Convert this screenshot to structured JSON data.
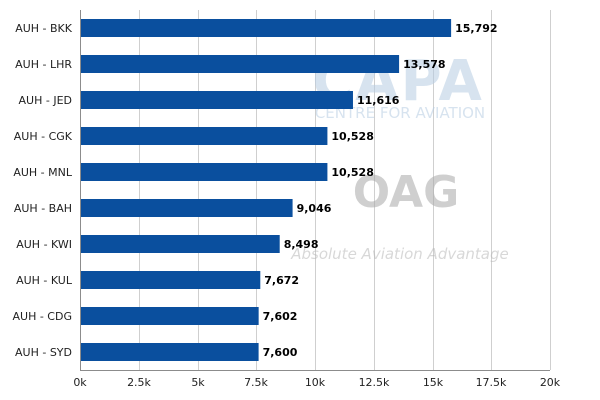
{
  "chart_data": {
    "type": "bar",
    "orientation": "horizontal",
    "categories": [
      "AUH - BKK",
      "AUH - LHR",
      "AUH - JED",
      "AUH - CGK",
      "AUH - MNL",
      "AUH - BAH",
      "AUH - KWI",
      "AUH - KUL",
      "AUH - CDG",
      "AUH - SYD"
    ],
    "values": [
      15792,
      13578,
      11616,
      10528,
      10528,
      9046,
      8498,
      7672,
      7602,
      7600
    ],
    "value_labels": [
      "15,792",
      "13,578",
      "11,616",
      "10,528",
      "10,528",
      "9,046",
      "8,498",
      "7,672",
      "7,602",
      "7,600"
    ],
    "xlim": [
      0,
      20000
    ],
    "ticks": [
      0,
      2500,
      5000,
      7500,
      10000,
      12500,
      15000,
      17500,
      20000
    ],
    "tick_labels": [
      "0k",
      "2.5k",
      "5k",
      "7.5k",
      "10k",
      "12.5k",
      "15k",
      "17.5k",
      "20k"
    ],
    "grid": "vertical",
    "bar_color": "#0a4f9e"
  },
  "watermark": {
    "capa_logo": "CAPA",
    "capa_tagline": "CENTRE FOR AVIATION",
    "oag_logo": "OAG",
    "oag_tagline": "Absolute Aviation Advantage"
  }
}
